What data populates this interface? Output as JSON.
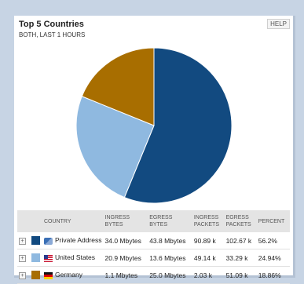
{
  "panel": {
    "title": "Top 5 Countries",
    "subtitle": "BOTH, LAST 1 HOURS",
    "help_label": "HELP"
  },
  "chart_data": {
    "type": "pie",
    "title": "Top 5 Countries",
    "subtitle": "BOTH, LAST 1 HOURS",
    "categories": [
      "Private Address",
      "United States",
      "Germany"
    ],
    "values": [
      56.2,
      24.94,
      18.86
    ],
    "colors": [
      "#124a80",
      "#8fb9e0",
      "#a86e00"
    ]
  },
  "table": {
    "headers": {
      "country": "COUNTRY",
      "ingress_bytes": [
        "INGRESS",
        "BYTES"
      ],
      "egress_bytes": [
        "EGRESS",
        "BYTES"
      ],
      "ingress_packets": [
        "INGRESS",
        "PACKETS"
      ],
      "egress_packets": [
        "EGRESS",
        "PACKETS"
      ],
      "percent": "PERCENT"
    },
    "rows": [
      {
        "country": "Private Address",
        "flag": "private",
        "color": "#124a80",
        "ingress_bytes": "34.0 Mbytes",
        "egress_bytes": "43.8 Mbytes",
        "ingress_packets": "90.89 k",
        "egress_packets": "102.67 k",
        "percent": "56.2%"
      },
      {
        "country": "United States",
        "flag": "us",
        "color": "#8fb9e0",
        "ingress_bytes": "20.9 Mbytes",
        "egress_bytes": "13.6 Mbytes",
        "ingress_packets": "49.14 k",
        "egress_packets": "33.29 k",
        "percent": "24.94%"
      },
      {
        "country": "Germany",
        "flag": "de",
        "color": "#a86e00",
        "ingress_bytes": "1.1 Mbytes",
        "egress_bytes": "25.0 Mbytes",
        "ingress_packets": "2.03 k",
        "egress_packets": "51.09 k",
        "percent": "18.86%"
      }
    ]
  }
}
